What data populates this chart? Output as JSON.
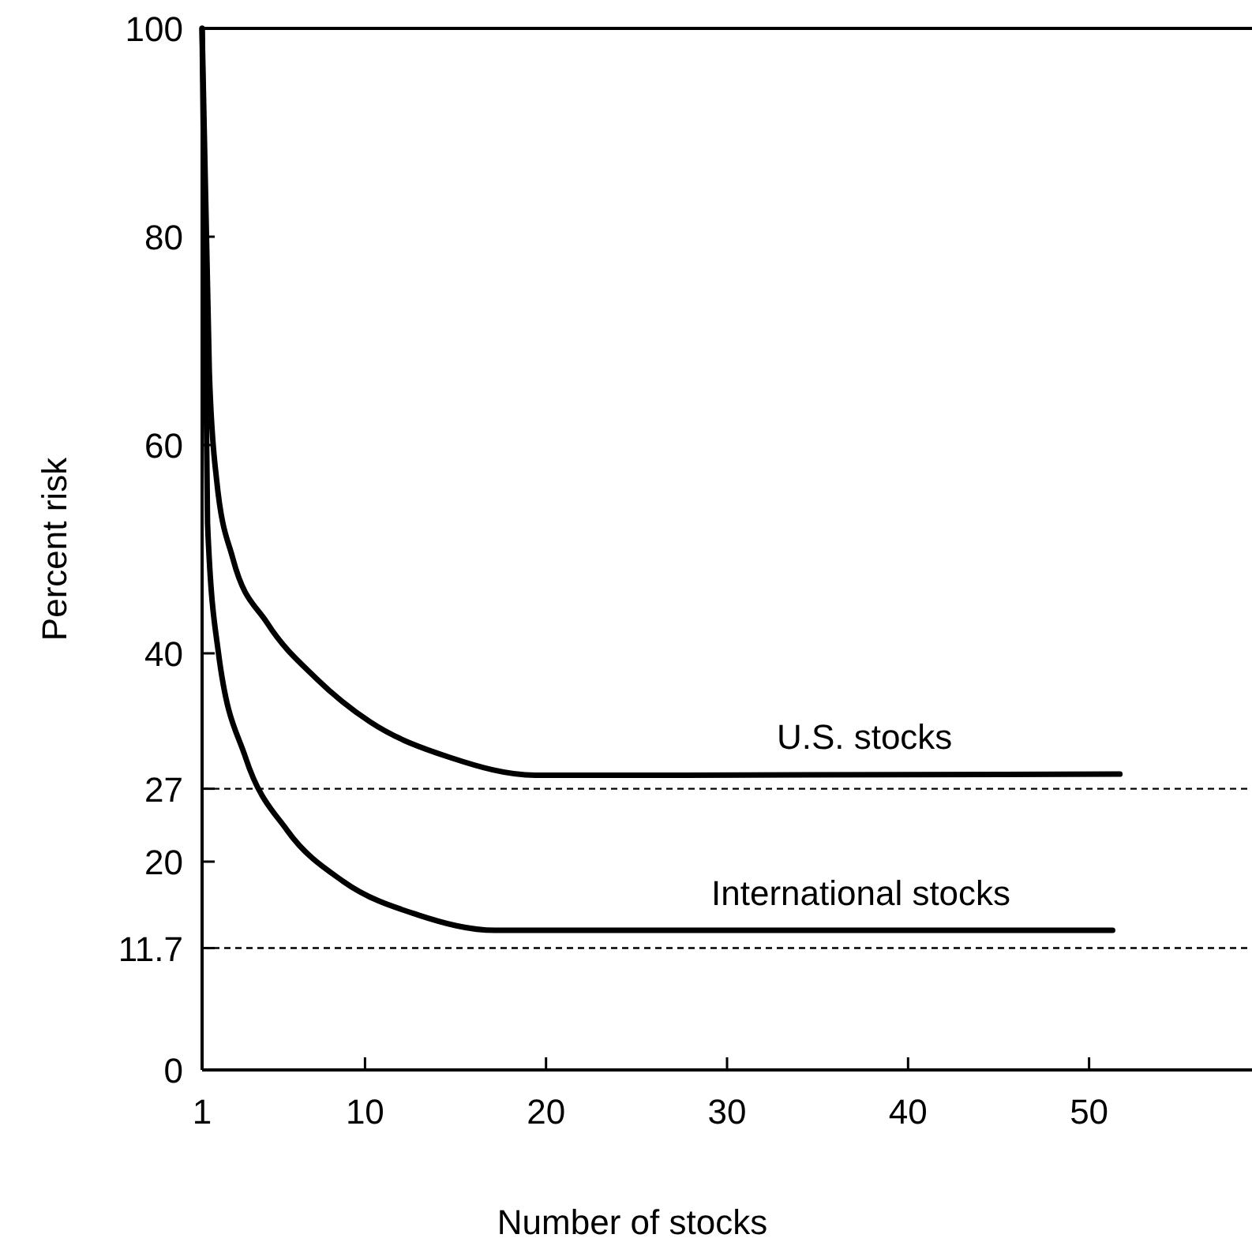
{
  "chart_data": {
    "type": "line",
    "xlabel": "Number of stocks",
    "ylabel": "Percent risk",
    "xlim": [
      1,
      59
    ],
    "xticks": [
      1,
      10,
      20,
      30,
      40,
      50
    ],
    "ylim": [
      0,
      100
    ],
    "yticks": [
      0,
      11.7,
      20,
      27,
      40,
      60,
      80,
      100
    ],
    "marker": "none",
    "line_style": "solid",
    "grid": false,
    "legend": false,
    "series": [
      {
        "name": "U.S. stocks",
        "color": "#000000",
        "x": [
          1,
          1.4,
          1.8,
          2.7,
          4.6,
          7.3,
          10.3,
          14.7,
          19.4,
          27.6,
          51.7
        ],
        "values": [
          100,
          67,
          56.7,
          49.1,
          42.9,
          37.6,
          33.4,
          30,
          28.3,
          28.3,
          28.4
        ]
      },
      {
        "name": "International stocks",
        "color": "#000000",
        "x": [
          1,
          1.2,
          1.3,
          1.9,
          3.4,
          5.7,
          8.8,
          12.9,
          17.2,
          51.3
        ],
        "values": [
          100,
          70,
          52.5,
          40.1,
          30,
          23,
          18.1,
          14.9,
          13.4,
          13.4
        ]
      }
    ],
    "ref_lines": [
      {
        "axis": "y",
        "value": 27,
        "line_style": "dashed",
        "color": "#000000"
      },
      {
        "axis": "y",
        "value": 11.7,
        "line_style": "dashed",
        "color": "#000000"
      }
    ]
  }
}
